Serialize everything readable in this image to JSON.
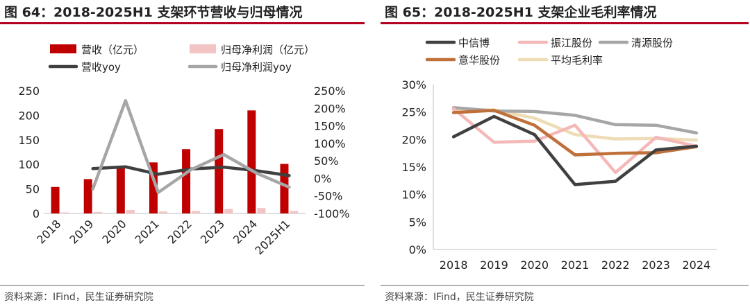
{
  "left_panel": {
    "title": "图 64：2018-2025H1 支架环节营收与归母情况",
    "source": "资料来源：IFind，民生证券研究院"
  },
  "right_panel": {
    "title": "图 65：2018-2025H1 支架企业毛利率情况",
    "source": "资料来源：IFind，民生证券研究院"
  },
  "colors": {
    "accent_rule": "#b5001f",
    "revenue_bar": "#c00000",
    "profit_bar": "#f2c4c4",
    "revenue_yoy": "#404040",
    "profit_yoy": "#a6a6a6",
    "中信博": "#404040",
    "振江股份": "#f4b8b8",
    "清源股份": "#a6a6a6",
    "意华股份": "#c0703a",
    "平均毛利率": "#eddcb5"
  },
  "chart_data": [
    {
      "type": "bar",
      "title": "2018-2025H1 支架环节营收与归母情况",
      "categories": [
        "2018",
        "2019",
        "2020",
        "2021",
        "2022",
        "2023",
        "2024",
        "2025H1"
      ],
      "series": [
        {
          "name": "营收（亿元）",
          "type": "bar",
          "axis": "left",
          "values": [
            54,
            70,
            93,
            104,
            131,
            172,
            210,
            101
          ]
        },
        {
          "name": "归母净利润（亿元）",
          "type": "bar",
          "axis": "left",
          "values": [
            2,
            3,
            7,
            4,
            5,
            9,
            11,
            5
          ]
        },
        {
          "name": "营收yoy",
          "type": "line",
          "axis": "right",
          "values": [
            null,
            28,
            33,
            12,
            27,
            32,
            22,
            8
          ]
        },
        {
          "name": "归母净利润yoy",
          "type": "line",
          "axis": "right",
          "values": [
            null,
            -30,
            222,
            -40,
            25,
            68,
            15,
            -25
          ]
        }
      ],
      "ylim_left": [
        0,
        250
      ],
      "yticks_left": [
        "0",
        "50",
        "100",
        "150",
        "200",
        "250"
      ],
      "ylim_right": [
        -100,
        250
      ],
      "yticks_right": [
        "-100%",
        "-50%",
        "0%",
        "50%",
        "100%",
        "150%",
        "200%",
        "250%"
      ],
      "legend_placement": "top"
    },
    {
      "type": "line",
      "title": "2018-2025H1 支架企业毛利率情况",
      "categories": [
        "2018",
        "2019",
        "2020",
        "2021",
        "2022",
        "2023",
        "2024"
      ],
      "series": [
        {
          "name": "中信博",
          "values": [
            20.5,
            24.2,
            20.9,
            11.8,
            12.4,
            18.1,
            18.8
          ]
        },
        {
          "name": "振江股份",
          "values": [
            25.6,
            19.5,
            19.7,
            22.6,
            14.0,
            20.4,
            18.8
          ]
        },
        {
          "name": "清源股份",
          "values": [
            25.8,
            25.2,
            25.1,
            24.4,
            22.7,
            22.6,
            21.2
          ]
        },
        {
          "name": "意华股份",
          "values": [
            24.9,
            25.3,
            22.6,
            17.2,
            17.5,
            17.6,
            18.7
          ]
        },
        {
          "name": "平均毛利率",
          "values": [
            25.3,
            25.4,
            23.9,
            20.9,
            20.1,
            20.2,
            19.9
          ]
        }
      ],
      "ylim": [
        0,
        30
      ],
      "yticks": [
        "0%",
        "5%",
        "10%",
        "15%",
        "20%",
        "25%",
        "30%"
      ],
      "legend_placement": "top"
    }
  ]
}
